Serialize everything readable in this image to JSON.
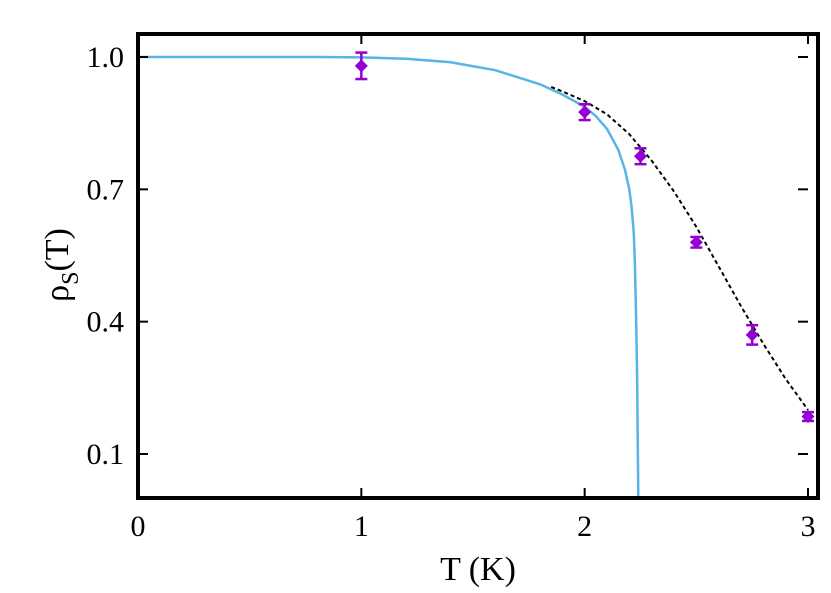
{
  "chart_data": {
    "type": "scatter",
    "xlabel": "T (K)",
    "ylabel": {
      "main": "ρ",
      "sub": "S",
      "rest": "(T)"
    },
    "xlim": [
      0,
      3
    ],
    "ylim": [
      0.0,
      1.0
    ],
    "x_ticks": [
      0,
      1,
      2,
      3
    ],
    "x_tick_labels": [
      "0",
      "1",
      "2",
      "3"
    ],
    "y_ticks": [
      0.1,
      0.4,
      0.7,
      1.0
    ],
    "y_tick_labels": [
      "0.1",
      "0.4",
      "0.7",
      "1.0"
    ],
    "grid": false,
    "series": [
      {
        "kind": "points-with-errorbars",
        "color": "#9400d3",
        "points": [
          {
            "x": 1.0,
            "y": 0.98,
            "err": 0.03
          },
          {
            "x": 2.0,
            "y": 0.875,
            "err": 0.018
          },
          {
            "x": 2.25,
            "y": 0.775,
            "err": 0.018
          },
          {
            "x": 2.5,
            "y": 0.58,
            "err": 0.012
          },
          {
            "x": 2.75,
            "y": 0.37,
            "err": 0.022
          },
          {
            "x": 3.0,
            "y": 0.185,
            "err": 0.01
          }
        ]
      },
      {
        "kind": "solid-curve",
        "color": "#5ab4e5",
        "points": [
          [
            0.0,
            1.0
          ],
          [
            0.8,
            1.0
          ],
          [
            1.0,
            0.999
          ],
          [
            1.2,
            0.996
          ],
          [
            1.4,
            0.988
          ],
          [
            1.6,
            0.97
          ],
          [
            1.8,
            0.938
          ],
          [
            1.9,
            0.915
          ],
          [
            2.0,
            0.887
          ],
          [
            2.05,
            0.866
          ],
          [
            2.1,
            0.837
          ],
          [
            2.15,
            0.79
          ],
          [
            2.18,
            0.745
          ],
          [
            2.2,
            0.7
          ],
          [
            2.21,
            0.66
          ],
          [
            2.22,
            0.6
          ],
          [
            2.225,
            0.53
          ],
          [
            2.23,
            0.42
          ],
          [
            2.235,
            0.28
          ],
          [
            2.24,
            0.0
          ]
        ]
      },
      {
        "kind": "dashed-curve",
        "color": "#000000",
        "points": [
          [
            1.85,
            0.932
          ],
          [
            1.9,
            0.922
          ],
          [
            2.0,
            0.9
          ],
          [
            2.1,
            0.87
          ],
          [
            2.2,
            0.825
          ],
          [
            2.3,
            0.765
          ],
          [
            2.4,
            0.695
          ],
          [
            2.5,
            0.615
          ],
          [
            2.6,
            0.525
          ],
          [
            2.7,
            0.435
          ],
          [
            2.8,
            0.35
          ],
          [
            2.9,
            0.27
          ],
          [
            3.0,
            0.2
          ]
        ]
      }
    ]
  }
}
